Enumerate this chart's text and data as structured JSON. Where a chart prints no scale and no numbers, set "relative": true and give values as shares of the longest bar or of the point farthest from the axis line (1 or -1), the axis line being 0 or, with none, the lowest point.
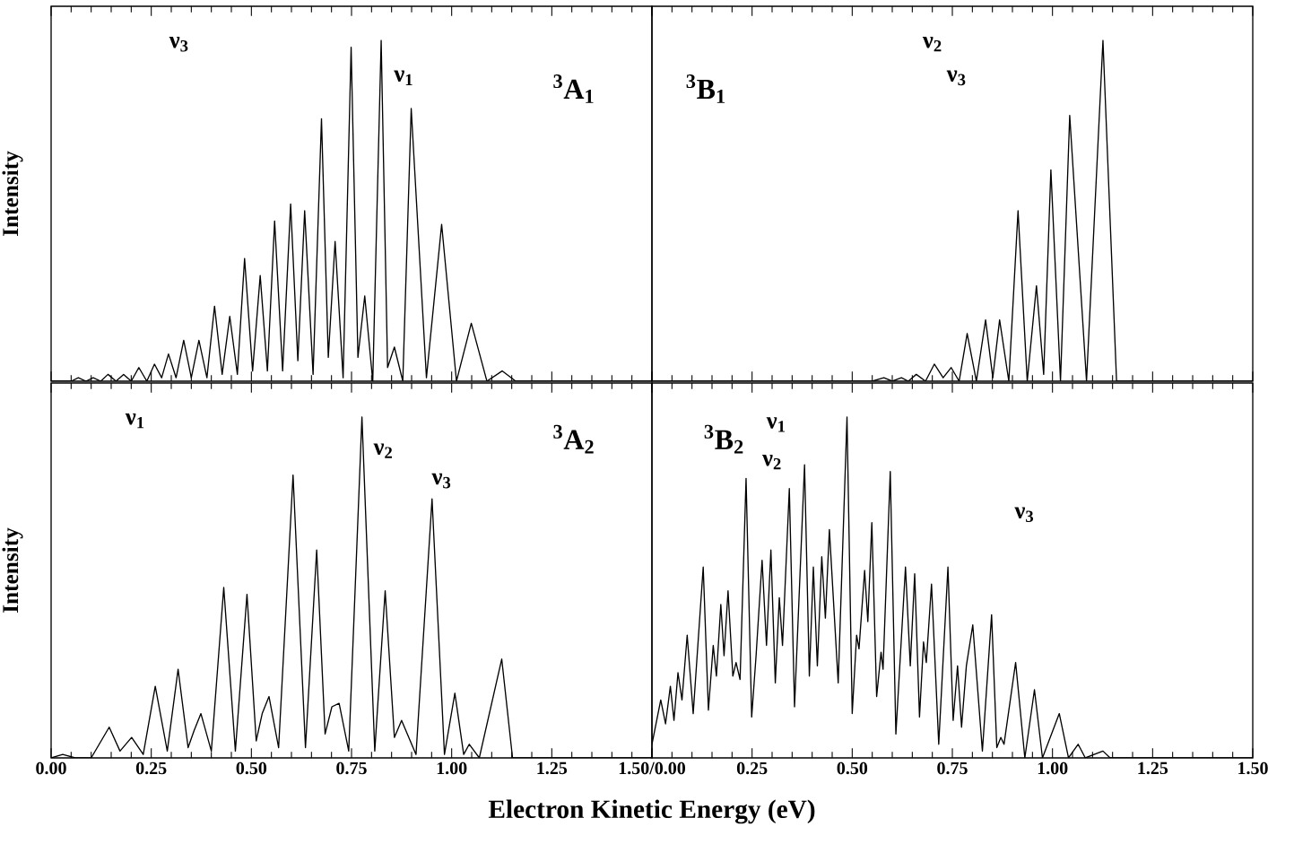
{
  "chart_data": [
    {
      "type": "line",
      "title": "$^{3}$A$_{1}$",
      "ylabel": "Intensity",
      "relative": true,
      "tick_labels": false,
      "xlim": [
        0,
        1.5
      ],
      "xticks": [
        0,
        0.25,
        0.5,
        0.75,
        1,
        1.25,
        1.5
      ],
      "annotations": [
        "ν$_{3}$",
        "ν$_{1}$"
      ],
      "series": [
        {
          "color": "#000000",
          "x": [
            0,
            0.05,
            0.068,
            0.087,
            0.105,
            0.124,
            0.142,
            0.162,
            0.181,
            0.2,
            0.219,
            0.239,
            0.258,
            0.276,
            0.293,
            0.312,
            0.331,
            0.35,
            0.369,
            0.389,
            0.408,
            0.427,
            0.446,
            0.465,
            0.483,
            0.503,
            0.522,
            0.54,
            0.558,
            0.578,
            0.598,
            0.616,
            0.633,
            0.654,
            0.675,
            0.692,
            0.709,
            0.729,
            0.749,
            0.766,
            0.783,
            0.803,
            0.824,
            0.84,
            0.857,
            0.878,
            0.899,
            0.937,
            0.975,
            1.012,
            1.049,
            1.088,
            1.126,
            1.16,
            1.5
          ],
          "values": [
            0,
            0,
            0.01,
            0,
            0.01,
            0,
            0.02,
            0,
            0.02,
            0,
            0.04,
            0,
            0.05,
            0.01,
            0.08,
            0.01,
            0.12,
            0.01,
            0.12,
            0.01,
            0.22,
            0.02,
            0.19,
            0.02,
            0.36,
            0.03,
            0.31,
            0.03,
            0.47,
            0.03,
            0.52,
            0.06,
            0.5,
            0.02,
            0.77,
            0.07,
            0.41,
            0.01,
            0.98,
            0.07,
            0.25,
            0,
            1,
            0.04,
            0.1,
            0,
            0.8,
            0.01,
            0.46,
            0,
            0.17,
            0,
            0.03,
            0,
            0
          ]
        }
      ]
    },
    {
      "type": "line",
      "title": "$^{3}$B$_{1}$",
      "relative": true,
      "tick_labels": false,
      "xlim": [
        0,
        1.5
      ],
      "xticks": [
        0,
        0.25,
        0.5,
        0.75,
        1,
        1.25,
        1.5
      ],
      "annotations": [
        "ν$_{2}$",
        "ν$_{3}$"
      ],
      "series": [
        {
          "color": "#000000",
          "x": [
            0,
            0.55,
            0.579,
            0.6,
            0.623,
            0.64,
            0.66,
            0.683,
            0.705,
            0.727,
            0.747,
            0.767,
            0.787,
            0.81,
            0.833,
            0.851,
            0.868,
            0.891,
            0.914,
            0.937,
            0.96,
            0.978,
            0.996,
            1.02,
            1.043,
            1.085,
            1.126,
            1.16,
            1.5
          ],
          "values": [
            0,
            0,
            0.01,
            0,
            0.01,
            0,
            0.02,
            0,
            0.05,
            0.01,
            0.04,
            0,
            0.14,
            0,
            0.18,
            0.01,
            0.18,
            0,
            0.5,
            0,
            0.28,
            0.02,
            0.62,
            0,
            0.78,
            0,
            1,
            0,
            0
          ]
        }
      ]
    },
    {
      "type": "line",
      "title": "$^{3}$A$_{2}$",
      "ylabel": "Intensity",
      "xlabel": "Electron Kinetic Energy (eV)",
      "relative": true,
      "tick_labels": "x",
      "xlim": [
        0,
        1.5
      ],
      "xticks": [
        {
          "value": 0,
          "label": "0.00"
        },
        {
          "value": 0.25,
          "label": "0.25"
        },
        {
          "value": 0.5,
          "label": "0.50"
        },
        {
          "value": 0.75,
          "label": "0.75"
        },
        {
          "value": 1,
          "label": "1.00"
        },
        {
          "value": 1.25,
          "label": "1.25"
        },
        {
          "value": 1.5,
          "label": "1.50/0.00"
        }
      ],
      "annotations": [
        "ν$_{1}$",
        "ν$_{2}$",
        "ν$_{3}$"
      ],
      "series": [
        {
          "color": "#000000",
          "x": [
            0,
            0.029,
            0.06,
            0.1,
            0.145,
            0.172,
            0.201,
            0.23,
            0.26,
            0.29,
            0.317,
            0.342,
            0.357,
            0.374,
            0.4,
            0.431,
            0.46,
            0.489,
            0.512,
            0.527,
            0.544,
            0.568,
            0.604,
            0.635,
            0.663,
            0.684,
            0.701,
            0.719,
            0.743,
            0.776,
            0.808,
            0.834,
            0.857,
            0.875,
            0.911,
            0.951,
            0.982,
            1.008,
            1.03,
            1.044,
            1.069,
            1.125,
            1.152,
            1.5
          ],
          "values": [
            0,
            0.01,
            0,
            0,
            0.09,
            0.02,
            0.06,
            0.01,
            0.21,
            0.02,
            0.26,
            0.03,
            0.08,
            0.13,
            0.02,
            0.5,
            0.02,
            0.48,
            0.05,
            0.13,
            0.18,
            0.03,
            0.83,
            0.03,
            0.61,
            0.07,
            0.15,
            0.16,
            0.02,
            1,
            0.02,
            0.49,
            0.06,
            0.11,
            0.01,
            0.76,
            0.01,
            0.19,
            0.01,
            0.04,
            0,
            0.29,
            0,
            0
          ]
        }
      ]
    },
    {
      "type": "line",
      "title": "$^{3}$B$_{2}$",
      "relative": true,
      "tick_labels": "x",
      "xlim": [
        0,
        1.5
      ],
      "xticks": [
        {
          "value": 0,
          "label": null
        },
        {
          "value": 0.25,
          "label": "0.25"
        },
        {
          "value": 0.5,
          "label": "0.50"
        },
        {
          "value": 0.75,
          "label": "0.75"
        },
        {
          "value": 1,
          "label": "1.00"
        },
        {
          "value": 1.25,
          "label": "1.25"
        },
        {
          "value": 1.5,
          "label": "1.50"
        }
      ],
      "annotations": [
        "ν$_{1}$",
        "ν$_{2}$",
        "ν$_{3}$"
      ],
      "series": [
        {
          "color": "#000000",
          "x": [
            0,
            0.022,
            0.034,
            0.046,
            0.055,
            0.065,
            0.075,
            0.088,
            0.103,
            0.128,
            0.141,
            0.153,
            0.161,
            0.172,
            0.18,
            0.19,
            0.202,
            0.21,
            0.22,
            0.235,
            0.249,
            0.26,
            0.275,
            0.286,
            0.297,
            0.308,
            0.318,
            0.326,
            0.343,
            0.356,
            0.381,
            0.393,
            0.403,
            0.413,
            0.424,
            0.433,
            0.443,
            0.465,
            0.487,
            0.5,
            0.511,
            0.517,
            0.531,
            0.539,
            0.549,
            0.561,
            0.572,
            0.577,
            0.595,
            0.609,
            0.633,
            0.645,
            0.656,
            0.668,
            0.678,
            0.685,
            0.698,
            0.716,
            0.739,
            0.752,
            0.763,
            0.773,
            0.785,
            0.801,
            0.825,
            0.848,
            0.861,
            0.871,
            0.879,
            0.908,
            0.931,
            0.955,
            0.975,
            1.017,
            1.04,
            1.064,
            1.082,
            1.126,
            1.144,
            1.5
          ],
          "values": [
            0.04,
            0.17,
            0.1,
            0.21,
            0.11,
            0.25,
            0.17,
            0.36,
            0.13,
            0.56,
            0.14,
            0.33,
            0.24,
            0.45,
            0.3,
            0.49,
            0.24,
            0.28,
            0.23,
            0.82,
            0.12,
            0.3,
            0.58,
            0.33,
            0.61,
            0.22,
            0.47,
            0.33,
            0.79,
            0.15,
            0.86,
            0.24,
            0.56,
            0.27,
            0.59,
            0.41,
            0.67,
            0.22,
            1,
            0.13,
            0.36,
            0.32,
            0.55,
            0.4,
            0.69,
            0.18,
            0.31,
            0.26,
            0.84,
            0.07,
            0.56,
            0.27,
            0.54,
            0.12,
            0.34,
            0.28,
            0.51,
            0.04,
            0.56,
            0.11,
            0.27,
            0.09,
            0.27,
            0.39,
            0.02,
            0.42,
            0.03,
            0.06,
            0.04,
            0.28,
            0,
            0.2,
            0,
            0.13,
            0,
            0.04,
            0,
            0.02,
            0,
            0
          ]
        }
      ]
    }
  ]
}
